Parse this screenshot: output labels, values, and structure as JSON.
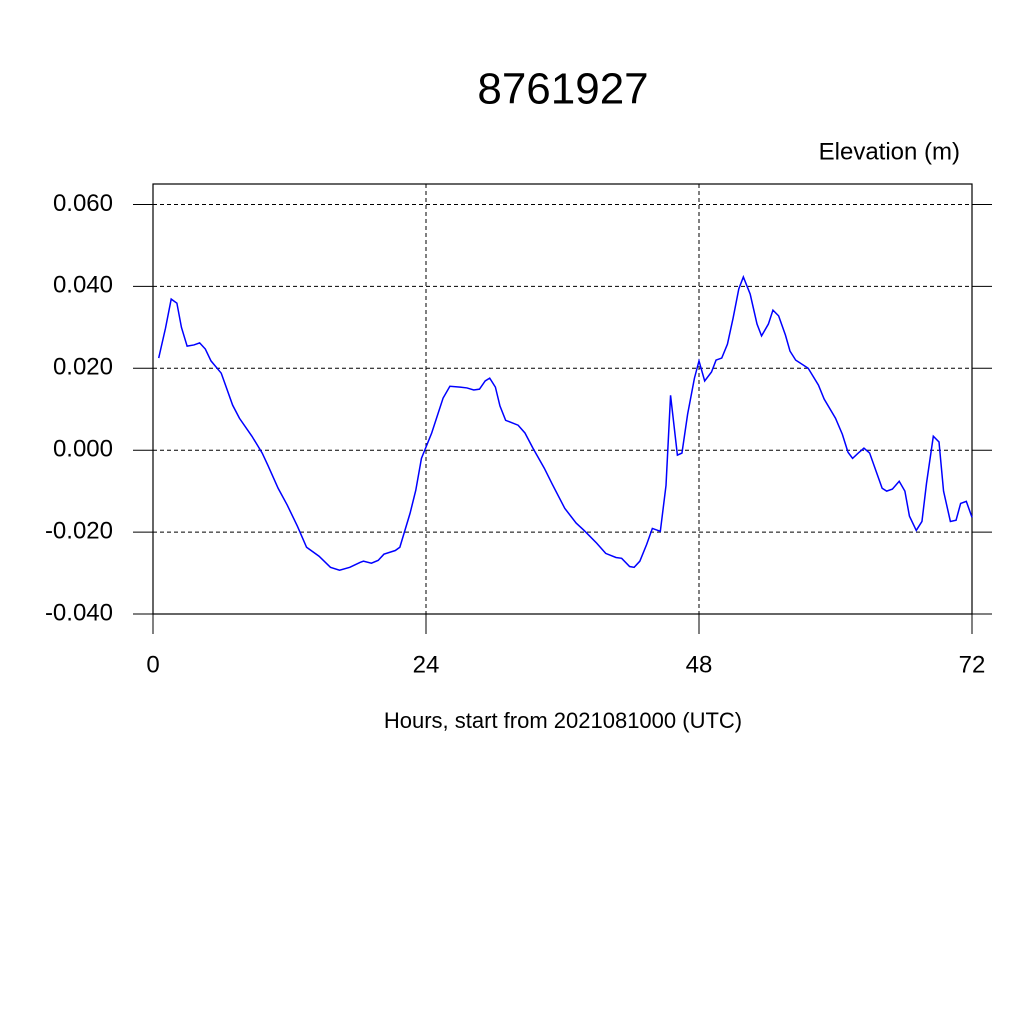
{
  "chart_data": {
    "type": "line",
    "title": "8761927",
    "ylabel": "Elevation (m)",
    "xlabel": "Hours, start from 2021081000 (UTC)",
    "color": "#0000ff",
    "grid": true,
    "xlim": [
      0,
      72
    ],
    "xticks": [
      0,
      24,
      48,
      72
    ],
    "ylim": [
      -0.04,
      0.065
    ],
    "yticks": [
      {
        "value": -0.04,
        "label": "-0.040"
      },
      {
        "value": -0.02,
        "label": "-0.020"
      },
      {
        "value": 0,
        "label": "0.000"
      },
      {
        "value": 0.02,
        "label": "0.020"
      },
      {
        "value": 0.04,
        "label": "0.040"
      },
      {
        "value": 0.06,
        "label": "0.060"
      }
    ],
    "x": [
      0.5,
      1.1,
      1.6,
      2.1,
      2.5,
      3.0,
      3.6,
      4.1,
      4.6,
      5.1,
      6.0,
      7.0,
      7.6,
      8.7,
      9.6,
      10.1,
      11.0,
      11.8,
      12.7,
      13.5,
      14.6,
      15.6,
      16.4,
      17.3,
      18.2,
      18.5,
      19.2,
      19.8,
      20.3,
      21.3,
      21.7,
      22.6,
      23.1,
      23.6,
      24.5,
      25.5,
      26.1,
      27.0,
      27.6,
      28.2,
      28.7,
      29.2,
      29.6,
      30.1,
      30.5,
      31.0,
      32.1,
      32.7,
      33.4,
      34.4,
      35.1,
      36.2,
      37.2,
      37.9,
      39.0,
      39.8,
      40.7,
      41.2,
      41.9,
      42.3,
      42.8,
      43.4,
      43.9,
      44.6,
      45.1,
      45.5,
      46.1,
      46.5,
      47.0,
      47.6,
      48.0,
      48.5,
      49.1,
      49.5,
      50.0,
      50.5,
      51.0,
      51.5,
      51.9,
      52.5,
      53.1,
      53.5,
      54.1,
      54.5,
      55.0,
      55.6,
      56.0,
      56.5,
      57.6,
      58.5,
      59.0,
      60.0,
      60.6,
      61.1,
      61.5,
      62.0,
      62.5,
      63.0,
      63.6,
      64.1,
      64.5,
      65.0,
      65.6,
      66.1,
      66.5,
      67.1,
      67.6,
      68.0,
      68.6,
      69.1,
      69.5,
      70.1,
      70.6,
      71.0,
      71.5,
      72.0
    ],
    "values": [
      0.0225,
      0.0298,
      0.0369,
      0.0359,
      0.03,
      0.0254,
      0.0257,
      0.0262,
      0.0247,
      0.0218,
      0.0188,
      0.011,
      0.0078,
      0.0034,
      -0.0007,
      -0.0037,
      -0.0093,
      -0.0134,
      -0.0186,
      -0.0237,
      -0.0259,
      -0.0286,
      -0.0293,
      -0.0286,
      -0.0274,
      -0.0271,
      -0.0276,
      -0.0269,
      -0.0254,
      -0.0245,
      -0.0237,
      -0.0154,
      -0.0098,
      -0.002,
      0.0042,
      0.0127,
      0.0156,
      0.0154,
      0.0152,
      0.0147,
      0.0149,
      0.0169,
      0.0176,
      0.0154,
      0.0108,
      0.0073,
      0.0061,
      0.0042,
      0.0005,
      -0.0044,
      -0.0083,
      -0.0142,
      -0.0178,
      -0.0196,
      -0.0227,
      -0.0252,
      -0.0262,
      -0.0264,
      -0.0284,
      -0.0286,
      -0.0271,
      -0.023,
      -0.0191,
      -0.0198,
      -0.0086,
      0.0134,
      -0.0012,
      -0.0007,
      0.0088,
      0.0176,
      0.0218,
      0.0169,
      0.0191,
      0.022,
      0.0225,
      0.0259,
      0.0323,
      0.0394,
      0.0423,
      0.0381,
      0.0308,
      0.0279,
      0.0308,
      0.0342,
      0.0328,
      0.0281,
      0.0242,
      0.022,
      0.02,
      0.0159,
      0.0125,
      0.0078,
      0.0039,
      -0.0005,
      -0.002,
      -0.0007,
      0.0005,
      -0.0007,
      -0.0054,
      -0.0093,
      -0.01,
      -0.0095,
      -0.0076,
      -0.01,
      -0.0161,
      -0.0196,
      -0.0174,
      -0.0081,
      0.0034,
      0.002,
      -0.01,
      -0.0174,
      -0.0171,
      -0.013,
      -0.0125,
      -0.0164
    ]
  }
}
